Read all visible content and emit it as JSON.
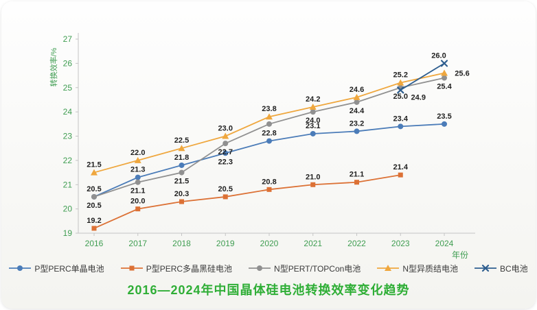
{
  "chart_data": {
    "type": "line",
    "title": "2016—2024年中国晶体硅电池转换效率变化趋势",
    "title_color": "#2fae36",
    "axis_color": "#3f9d51",
    "label_color": "#1f1f1f",
    "xlabel": "年份",
    "ylabel": "转换效率/%",
    "ylim": [
      19,
      27
    ],
    "ytick_step": 1,
    "grid": false,
    "legend_position": "bottom",
    "categories": [
      "2016",
      "2017",
      "2018",
      "2019",
      "2020",
      "2021",
      "2022",
      "2023",
      "2024"
    ],
    "series": [
      {
        "name": "P型PERC单晶电池",
        "color": "#4b7cb8",
        "marker": "circle",
        "values": [
          20.5,
          21.3,
          21.8,
          22.3,
          22.8,
          23.1,
          23.2,
          23.4,
          23.5
        ]
      },
      {
        "name": "P型PERC多晶黑硅电池",
        "color": "#dc7135",
        "marker": "square",
        "values": [
          19.2,
          20.0,
          20.3,
          20.5,
          20.8,
          21.0,
          21.1,
          21.4,
          null
        ]
      },
      {
        "name": "N型PERT/TOPCon电池",
        "color": "#909090",
        "marker": "circle",
        "values": [
          20.5,
          21.1,
          21.5,
          22.7,
          23.5,
          24.0,
          24.4,
          25.0,
          25.4
        ]
      },
      {
        "name": "N型异质结电池",
        "color": "#efa73e",
        "marker": "triangle",
        "values": [
          21.5,
          22.0,
          22.5,
          23.0,
          23.8,
          24.2,
          24.6,
          25.2,
          25.6
        ]
      },
      {
        "name": "BC电池",
        "color": "#2e5e8f",
        "marker": "x",
        "values": [
          null,
          null,
          null,
          null,
          null,
          null,
          null,
          24.9,
          26.0
        ]
      }
    ]
  }
}
